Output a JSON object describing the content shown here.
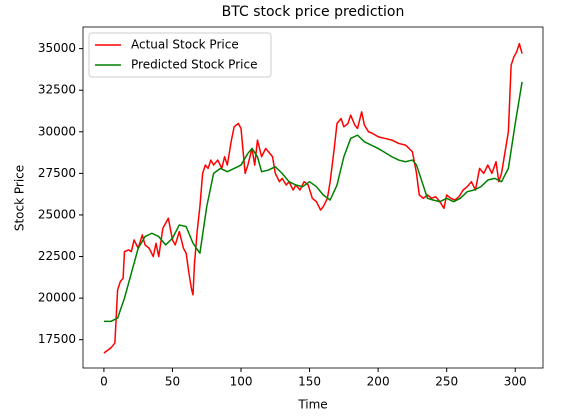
{
  "chart_data": {
    "type": "line",
    "title": "BTC stock price prediction",
    "x_label": "Time",
    "y_label": "Stock Price",
    "xlim": [
      -15.25,
      320.25
    ],
    "xticks": [
      0,
      50,
      100,
      150,
      200,
      250,
      300
    ],
    "ylim": [
      15800,
      36300
    ],
    "yticks": [
      17500,
      20000,
      22500,
      25000,
      27500,
      30000,
      32500,
      35000
    ],
    "grid": false,
    "legend": "upper left",
    "series": [
      {
        "name": "Actual Stock Price",
        "color": "#ff0000",
        "x": [
          0,
          5,
          8,
          10,
          12,
          14,
          15,
          18,
          20,
          22,
          25,
          28,
          30,
          33,
          36,
          38,
          40,
          43,
          45,
          47,
          50,
          52,
          55,
          58,
          60,
          62,
          64,
          65,
          66,
          68,
          70,
          72,
          74,
          76,
          78,
          80,
          83,
          86,
          88,
          90,
          93,
          95,
          98,
          100,
          103,
          105,
          108,
          110,
          112,
          115,
          118,
          120,
          123,
          125,
          128,
          130,
          133,
          135,
          138,
          140,
          143,
          146,
          149,
          152,
          155,
          158,
          160,
          163,
          165,
          168,
          170,
          173,
          175,
          178,
          180,
          183,
          185,
          188,
          190,
          193,
          196,
          200,
          205,
          210,
          215,
          220,
          225,
          228,
          230,
          233,
          236,
          239,
          242,
          245,
          248,
          250,
          253,
          256,
          259,
          262,
          265,
          268,
          271,
          274,
          277,
          280,
          283,
          286,
          288,
          290,
          293,
          295,
          297,
          299,
          301,
          303,
          305
        ],
        "values": [
          16700,
          17000,
          17300,
          20500,
          21000,
          21200,
          22800,
          22900,
          22800,
          23500,
          23000,
          23800,
          23200,
          23000,
          22500,
          23300,
          22500,
          24200,
          24500,
          24800,
          23500,
          23200,
          24000,
          23000,
          22700,
          21500,
          20500,
          20200,
          22000,
          24000,
          25500,
          27500,
          28000,
          27800,
          28300,
          28000,
          28300,
          27800,
          28500,
          28000,
          29500,
          30300,
          30500,
          30200,
          27500,
          28000,
          29000,
          28000,
          29500,
          28500,
          29000,
          28800,
          28500,
          27500,
          27000,
          27200,
          26800,
          27000,
          26500,
          26800,
          26500,
          27000,
          26800,
          26000,
          25800,
          25300,
          25500,
          26000,
          27000,
          29000,
          30500,
          30800,
          30300,
          30500,
          31000,
          30400,
          30200,
          31200,
          30400,
          30000,
          29900,
          29700,
          29600,
          29500,
          29300,
          29200,
          28800,
          27500,
          26200,
          26000,
          26200,
          26000,
          26100,
          25800,
          25400,
          26200,
          26000,
          25900,
          26100,
          26500,
          26700,
          27000,
          26500,
          27800,
          27500,
          28000,
          27500,
          28200,
          27000,
          27500,
          29000,
          30000,
          34000,
          34500,
          34800,
          35300,
          34700
        ]
      },
      {
        "name": "Predicted Stock Price",
        "color": "#008000",
        "x": [
          0,
          5,
          10,
          15,
          20,
          25,
          30,
          35,
          40,
          45,
          50,
          55,
          60,
          65,
          70,
          75,
          80,
          85,
          90,
          95,
          100,
          105,
          108,
          112,
          115,
          120,
          125,
          130,
          135,
          140,
          145,
          150,
          155,
          160,
          165,
          170,
          175,
          180,
          185,
          190,
          200,
          210,
          215,
          220,
          225,
          228,
          232,
          236,
          240,
          245,
          250,
          255,
          260,
          265,
          270,
          275,
          280,
          285,
          290,
          295,
          300,
          303,
          305
        ],
        "values": [
          18600,
          18600,
          18800,
          20000,
          21500,
          23000,
          23700,
          23900,
          23700,
          23200,
          23600,
          24400,
          24300,
          23300,
          22700,
          25500,
          27500,
          27800,
          27600,
          27800,
          28000,
          28700,
          29000,
          28500,
          27600,
          27700,
          27900,
          27500,
          27000,
          26800,
          26700,
          27000,
          26700,
          26200,
          25900,
          26800,
          28500,
          29600,
          29800,
          29400,
          29000,
          28500,
          28300,
          28200,
          28300,
          28000,
          27000,
          26000,
          25900,
          25800,
          26000,
          25800,
          26000,
          26400,
          26500,
          26700,
          27100,
          27200,
          27000,
          27800,
          30500,
          32000,
          33000
        ]
      }
    ]
  }
}
